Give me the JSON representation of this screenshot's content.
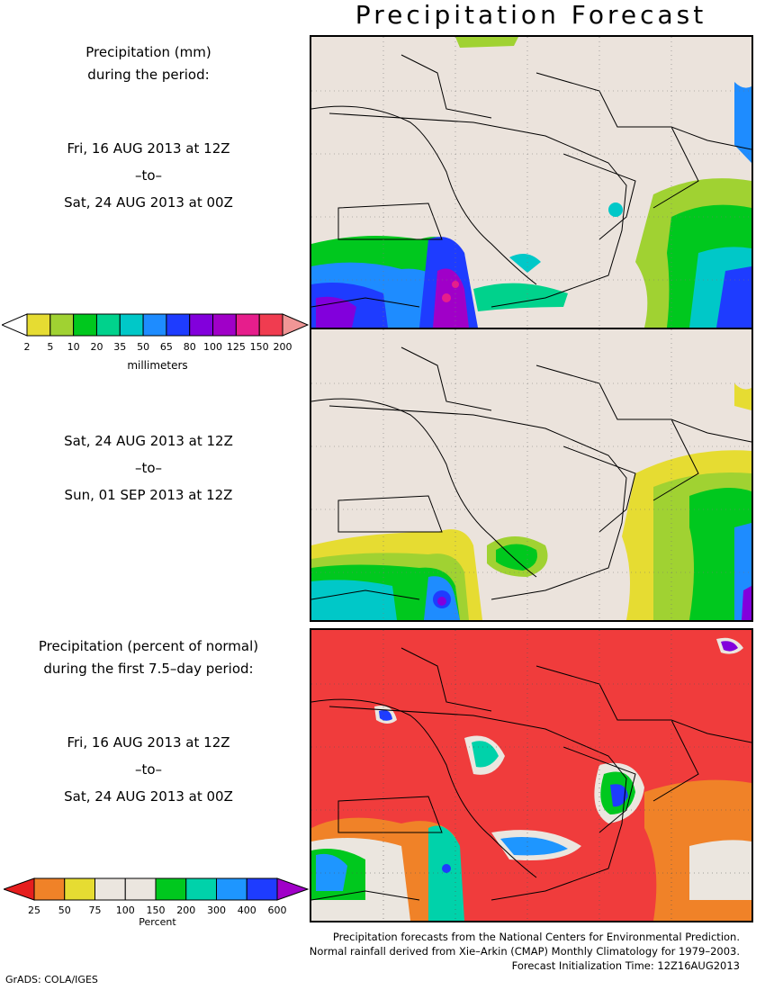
{
  "title": "Precipitation Forecast",
  "panel1": {
    "heading": [
      "Precipitation (mm)",
      "during the period:"
    ],
    "start": "Fri, 16 AUG 2013 at 12Z",
    "to": "–to–",
    "end": "Sat, 24 AUG 2013 at 00Z"
  },
  "panel2": {
    "start": "Sat, 24 AUG 2013 at 12Z",
    "to": "–to–",
    "end": "Sun, 01 SEP 2013 at 12Z"
  },
  "panel3": {
    "heading": [
      "Precipitation (percent of normal)",
      "during the first 7.5–day period:"
    ],
    "start": "Fri, 16 AUG 2013 at 12Z",
    "to": "–to–",
    "end": "Sat, 24 AUG 2013 at 00Z"
  },
  "colorbar_mm": {
    "ticks": [
      "2",
      "5",
      "10",
      "20",
      "35",
      "50",
      "65",
      "80",
      "100",
      "125",
      "150",
      "200"
    ],
    "colors": [
      "#ffffff",
      "#e6dc32",
      "#a0d232",
      "#00c81e",
      "#00d28c",
      "#00c8c8",
      "#1e8cff",
      "#1e3cff",
      "#8200dc",
      "#a000c8",
      "#e61e8c",
      "#f03c50",
      "#f09696"
    ],
    "unit": "millimeters"
  },
  "colorbar_pct": {
    "ticks": [
      "25",
      "50",
      "75",
      "100",
      "150",
      "200",
      "300",
      "400",
      "600"
    ],
    "colors": [
      "#e61e1e",
      "#f08228",
      "#e6dc32",
      "#ebe6df",
      "#ebe6df",
      "#00c81e",
      "#00d2aa",
      "#1e96ff",
      "#1e3cff",
      "#a000c8"
    ],
    "unit": "Percent"
  },
  "footer": [
    "Precipitation forecasts from the National Centers for Environmental Prediction.",
    "Normal rainfall derived from Xie–Arkin (CMAP) Monthly Climatology for 1979–2003.",
    "Forecast Initialization Time: 12Z16AUG2013"
  ],
  "credit": "GrADS: COLA/IGES"
}
